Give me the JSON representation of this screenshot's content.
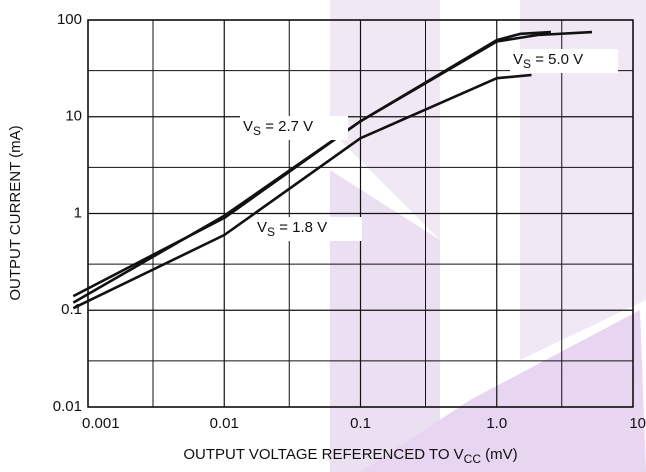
{
  "chart_data": {
    "type": "line",
    "log_x": true,
    "log_y": true,
    "grid": true,
    "y_label": "OUTPUT CURRENT (mA)",
    "x_label": {
      "base": "OUTPUT VOLTAGE REFERENCED TO V",
      "sub": "CC",
      "text": " (mV)"
    },
    "xlim": [
      0.001,
      10
    ],
    "xticks": [
      0.001,
      0.01,
      0.1,
      {
        "value": 1,
        "label": "1.0"
      },
      10
    ],
    "xminorticks": [
      0.003,
      0.03,
      0.3,
      3
    ],
    "ylim": [
      0.01,
      100
    ],
    "yticks": [
      0.01,
      0.1,
      1,
      10,
      100
    ],
    "yminorticks": [
      0.03,
      0.3,
      3,
      30
    ],
    "series": [
      {
        "label": {
          "base": "V",
          "sub": "S",
          "text": " = 5.0 V"
        },
        "color": "#111111",
        "x": [
          0.00078,
          0.01,
          0.1,
          1,
          2,
          5
        ],
        "values": [
          0.14,
          0.9,
          9,
          60,
          70,
          75
        ]
      },
      {
        "label": {
          "base": "V",
          "sub": "S",
          "text": " = 2.7 V"
        },
        "color": "#111111",
        "x": [
          0.00078,
          0.01,
          0.1,
          1,
          1.5,
          2.5
        ],
        "values": [
          0.12,
          0.95,
          9,
          62,
          72,
          75
        ]
      },
      {
        "label": {
          "base": "V",
          "sub": "S",
          "text": " = 1.8 V"
        },
        "color": "#111111",
        "x": [
          0.00078,
          0.01,
          0.1,
          1,
          1.8
        ],
        "values": [
          0.105,
          0.6,
          6,
          25,
          27
        ]
      }
    ]
  }
}
